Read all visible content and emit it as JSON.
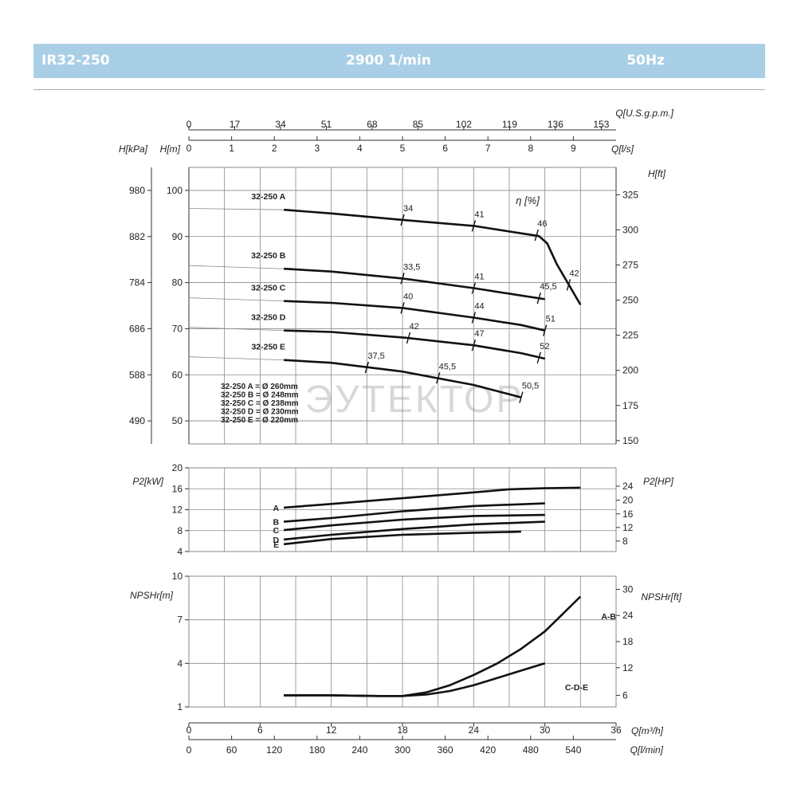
{
  "header": {
    "model": "IR32-250",
    "speed": "2900 1/min",
    "frequency": "50Hz",
    "background": "#a9cfe6"
  },
  "watermark": "ЭУТЕКТОР",
  "chart_data": {
    "type": "line",
    "flow_axes": {
      "usgpm": {
        "label": "Q[U.S.g.p.m.]",
        "ticks": [
          "0",
          "17",
          "34",
          "51",
          "68",
          "85",
          "102",
          "119",
          "136",
          "153"
        ]
      },
      "ls": {
        "label": "Q[l/s]",
        "ticks": [
          "0",
          "1",
          "2",
          "3",
          "4",
          "5",
          "6",
          "7",
          "8",
          "9"
        ]
      },
      "m3h": {
        "label": "Q[m³/h]",
        "ticks": [
          "0",
          "6",
          "12",
          "18",
          "24",
          "30",
          "36"
        ],
        "range": [
          0,
          36
        ]
      },
      "lmin": {
        "label": "Q[l/min]",
        "ticks": [
          "0",
          "60",
          "120",
          "180",
          "240",
          "300",
          "360",
          "420",
          "480",
          "540"
        ]
      }
    },
    "head": {
      "ylabel_m": "H[m]",
      "ylabel_kpa": "H[kPa]",
      "ylabel_ft": "H[ft]",
      "ylim": [
        45,
        105
      ],
      "ticks_m": [
        "50",
        "60",
        "70",
        "80",
        "90",
        "100"
      ],
      "ticks_kpa": [
        "490",
        "588",
        "686",
        "784",
        "882",
        "980"
      ],
      "ticks_ft": [
        "150",
        "175",
        "200",
        "225",
        "250",
        "275",
        "300",
        "325"
      ],
      "efficiency_label": "η [%]",
      "series": [
        {
          "name": "32-250 A",
          "x": [
            8,
            12,
            18,
            24,
            29.5,
            30.2,
            31,
            33
          ],
          "y": [
            95.8,
            95.0,
            93.6,
            92.3,
            90.1,
            88.5,
            84.0,
            75.2
          ]
        },
        {
          "name": "32-250 B",
          "x": [
            8,
            12,
            18,
            24,
            28,
            30
          ],
          "y": [
            83.0,
            82.4,
            80.9,
            78.8,
            77.2,
            76.4
          ]
        },
        {
          "name": "32-250 C",
          "x": [
            8,
            12,
            18,
            24,
            28,
            30
          ],
          "y": [
            76.0,
            75.6,
            74.5,
            72.4,
            70.8,
            69.6
          ]
        },
        {
          "name": "32-250 D",
          "x": [
            8,
            12,
            18,
            24,
            28,
            30
          ],
          "y": [
            69.6,
            69.3,
            68.1,
            66.4,
            64.7,
            63.5
          ]
        },
        {
          "name": "32-250 E",
          "x": [
            8,
            12,
            18,
            24,
            28
          ],
          "y": [
            63.2,
            62.6,
            60.7,
            57.8,
            55.1
          ]
        }
      ],
      "efficiency_marks": [
        {
          "label": "34",
          "x": 18,
          "y": 93.6
        },
        {
          "label": "41",
          "x": 24,
          "y": 92.3
        },
        {
          "label": "46",
          "x": 29.3,
          "y": 90.3
        },
        {
          "label": "42",
          "x": 32,
          "y": 79.5
        },
        {
          "label": "33,5",
          "x": 18,
          "y": 80.9
        },
        {
          "label": "41",
          "x": 24,
          "y": 78.8
        },
        {
          "label": "45,5",
          "x": 29.5,
          "y": 76.6
        },
        {
          "label": "40",
          "x": 18,
          "y": 74.5
        },
        {
          "label": "44",
          "x": 24,
          "y": 72.4
        },
        {
          "label": "51",
          "x": 30,
          "y": 69.6
        },
        {
          "label": "42",
          "x": 18.5,
          "y": 68.0
        },
        {
          "label": "47",
          "x": 24,
          "y": 66.4
        },
        {
          "label": "52",
          "x": 29.5,
          "y": 63.7
        },
        {
          "label": "37,5",
          "x": 15,
          "y": 61.6
        },
        {
          "label": "45,5",
          "x": 21,
          "y": 59.3
        },
        {
          "label": "50,5",
          "x": 28,
          "y": 55.1
        }
      ],
      "diameters": [
        "32-250 A = Ø 260mm",
        "32-250 B = Ø 248mm",
        "32-250 C = Ø 238mm",
        "32-250 D = Ø 230mm",
        "32-250 E = Ø 220mm"
      ]
    },
    "power": {
      "ylabel_kw": "P2[kW]",
      "ylabel_hp": "P2[HP]",
      "ylim": [
        4,
        20
      ],
      "ticks_kw": [
        "4",
        "8",
        "12",
        "16",
        "20"
      ],
      "ticks_hp": [
        "8",
        "12",
        "16",
        "20",
        "24"
      ],
      "series": [
        {
          "name": "A",
          "x": [
            8,
            12,
            18,
            24,
            27,
            30,
            33
          ],
          "y": [
            12.4,
            13.1,
            14.2,
            15.3,
            15.9,
            16.1,
            16.2
          ]
        },
        {
          "name": "B",
          "x": [
            8,
            12,
            18,
            24,
            30
          ],
          "y": [
            9.7,
            10.4,
            11.7,
            12.7,
            13.2
          ]
        },
        {
          "name": "C",
          "x": [
            8,
            12,
            18,
            24,
            30
          ],
          "y": [
            8.1,
            9.0,
            10.1,
            10.8,
            11.0
          ]
        },
        {
          "name": "D",
          "x": [
            8,
            12,
            18,
            24,
            30
          ],
          "y": [
            6.3,
            7.2,
            8.3,
            9.2,
            9.7
          ]
        },
        {
          "name": "E",
          "x": [
            8,
            12,
            18,
            24,
            28
          ],
          "y": [
            5.4,
            6.4,
            7.2,
            7.6,
            7.8
          ]
        }
      ]
    },
    "npsh": {
      "ylabel_m": "NPSHr[m]",
      "ylabel_ft": "NPSHr[ft]",
      "ylim": [
        1,
        10
      ],
      "ticks_m": [
        "1",
        "4",
        "7",
        "10"
      ],
      "ticks_ft": [
        "6",
        "12",
        "18",
        "24",
        "30"
      ],
      "series": [
        {
          "name": "A-B",
          "x": [
            8,
            12,
            16,
            18,
            20,
            22,
            24,
            26,
            28,
            30,
            31.5,
            33
          ],
          "y": [
            1.8,
            1.8,
            1.75,
            1.75,
            2.0,
            2.5,
            3.2,
            4.0,
            5.0,
            6.2,
            7.4,
            8.6
          ]
        },
        {
          "name": "C-D-E",
          "x": [
            8,
            12,
            16,
            18,
            20,
            22,
            24,
            26,
            28,
            30
          ],
          "y": [
            1.8,
            1.8,
            1.75,
            1.75,
            1.85,
            2.1,
            2.5,
            3.0,
            3.5,
            4.0
          ]
        }
      ]
    }
  }
}
